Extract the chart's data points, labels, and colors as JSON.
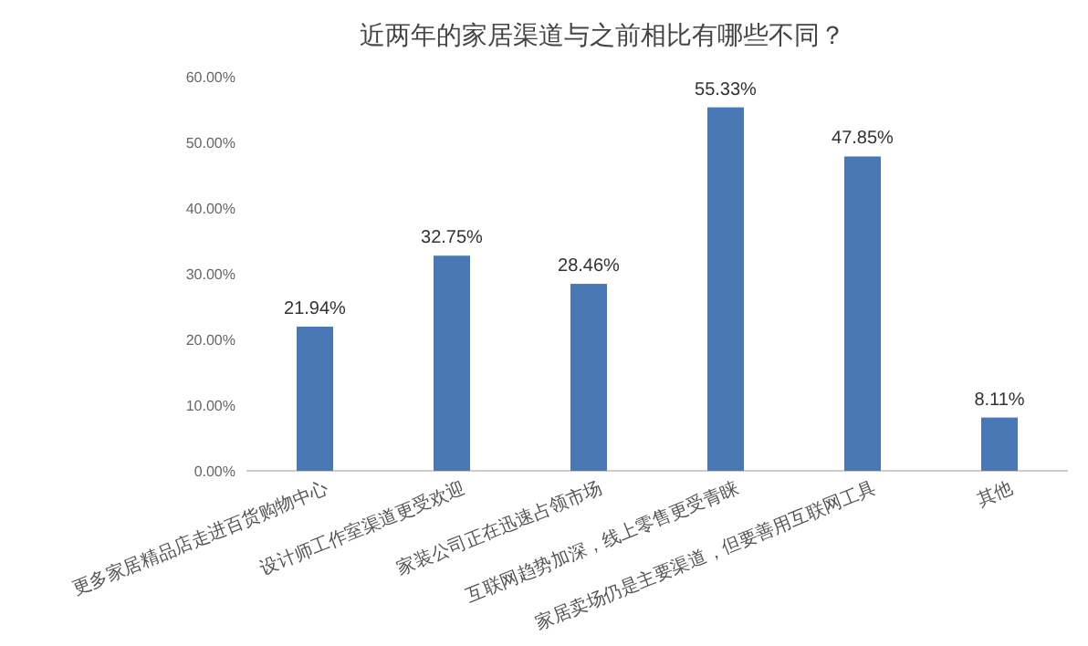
{
  "chart_data": {
    "type": "bar",
    "title": "近两年的家居渠道与之前相比有哪些不同？",
    "categories": [
      "更多家居精品店走进百货购物中心",
      "设计师工作室渠道更受欢迎",
      "家装公司正在迅速占领市场",
      "互联网趋势加深，线上零售更受青睐",
      "家居卖场仍是主要渠道，但要善用互联网工具",
      "其他"
    ],
    "values": [
      21.94,
      32.75,
      28.46,
      55.33,
      47.85,
      8.11
    ],
    "value_labels": [
      "21.94%",
      "32.75%",
      "28.46%",
      "55.33%",
      "47.85%",
      "8.11%"
    ],
    "color": "#4a78b5",
    "ylim": [
      0,
      60
    ],
    "yticks": [
      {
        "value": 0,
        "label": "0.00%"
      },
      {
        "value": 10,
        "label": "10.00%"
      },
      {
        "value": 20,
        "label": "20.00%"
      },
      {
        "value": 30,
        "label": "30.00%"
      },
      {
        "value": 40,
        "label": "40.00%"
      },
      {
        "value": 50,
        "label": "50.00%"
      },
      {
        "value": 60,
        "label": "60.00%"
      }
    ],
    "grid": false
  }
}
